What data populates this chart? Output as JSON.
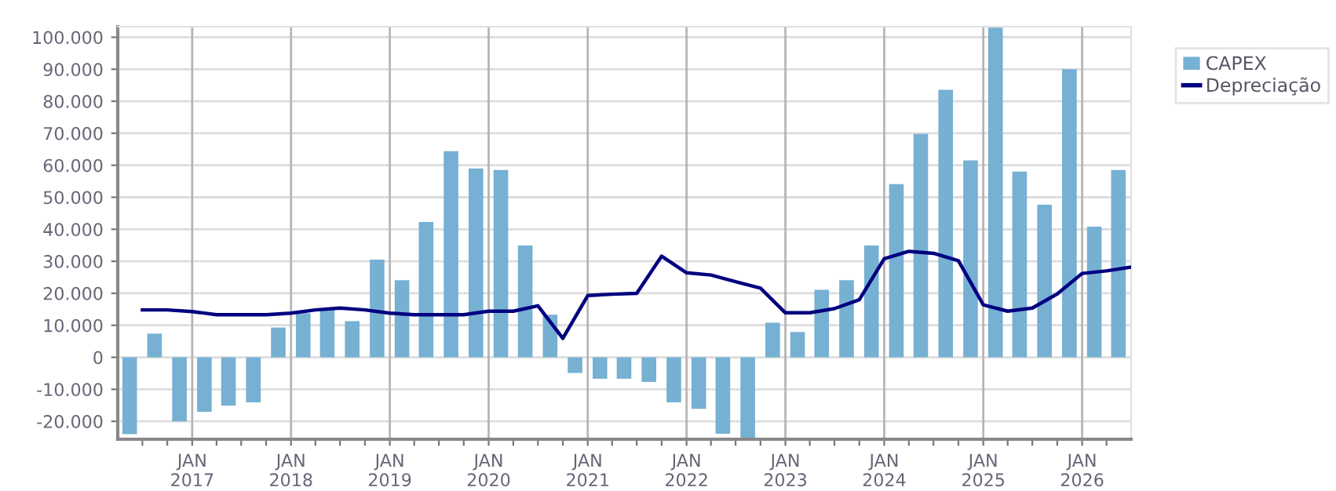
{
  "chart_data": {
    "type": "bar",
    "legend": "top right",
    "grid": true,
    "xlim": [
      "2016-04-01",
      "2026-07-01"
    ],
    "xticks": [
      {
        "value": "2016-07-01",
        "label": null
      },
      {
        "value": "2016-10-01",
        "label": null
      },
      {
        "value": "2017-01-01",
        "label": "JAN\n2017"
      },
      {
        "value": "2017-04-01",
        "label": null
      },
      {
        "value": "2017-07-01",
        "label": null
      },
      {
        "value": "2017-10-01",
        "label": null
      },
      {
        "value": "2018-01-01",
        "label": "JAN\n2018"
      },
      {
        "value": "2018-04-01",
        "label": null
      },
      {
        "value": "2018-07-01",
        "label": null
      },
      {
        "value": "2018-10-01",
        "label": null
      },
      {
        "value": "2019-01-01",
        "label": "JAN\n2019"
      },
      {
        "value": "2019-04-01",
        "label": null
      },
      {
        "value": "2019-07-01",
        "label": null
      },
      {
        "value": "2019-10-01",
        "label": null
      },
      {
        "value": "2020-01-01",
        "label": "JAN\n2020"
      },
      {
        "value": "2020-04-01",
        "label": null
      },
      {
        "value": "2020-07-01",
        "label": null
      },
      {
        "value": "2020-10-01",
        "label": null
      },
      {
        "value": "2021-01-01",
        "label": "JAN\n2021"
      },
      {
        "value": "2021-04-01",
        "label": null
      },
      {
        "value": "2021-07-01",
        "label": null
      },
      {
        "value": "2021-10-01",
        "label": null
      },
      {
        "value": "2022-01-01",
        "label": "JAN\n2022"
      },
      {
        "value": "2022-04-01",
        "label": null
      },
      {
        "value": "2022-07-01",
        "label": null
      },
      {
        "value": "2022-10-01",
        "label": null
      },
      {
        "value": "2023-01-01",
        "label": "JAN\n2023"
      },
      {
        "value": "2023-04-01",
        "label": null
      },
      {
        "value": "2023-07-01",
        "label": null
      },
      {
        "value": "2023-10-01",
        "label": null
      },
      {
        "value": "2024-01-01",
        "label": "JAN\n2024"
      },
      {
        "value": "2024-04-01",
        "label": null
      },
      {
        "value": "2024-07-01",
        "label": null
      },
      {
        "value": "2024-10-01",
        "label": null
      },
      {
        "value": "2025-01-01",
        "label": "JAN\n2025"
      },
      {
        "value": "2025-04-01",
        "label": null
      },
      {
        "value": "2025-07-01",
        "label": null
      },
      {
        "value": "2025-10-01",
        "label": null
      },
      {
        "value": "2026-01-01",
        "label": "JAN\n2026"
      },
      {
        "value": "2026-04-01",
        "label": null
      }
    ],
    "ylim": [
      -25600,
      103300
    ],
    "yticks": [
      {
        "value": -20000,
        "label": "-20.000"
      },
      {
        "value": -10000,
        "label": "-10.000"
      },
      {
        "value": 0,
        "label": "0"
      },
      {
        "value": 10000,
        "label": "10.000"
      },
      {
        "value": 20000,
        "label": "20.000"
      },
      {
        "value": 30000,
        "label": "30.000"
      },
      {
        "value": 40000,
        "label": "40.000"
      },
      {
        "value": 50000,
        "label": "50.000"
      },
      {
        "value": 60000,
        "label": "60.000"
      },
      {
        "value": 70000,
        "label": "70.000"
      },
      {
        "value": 80000,
        "label": "80.000"
      },
      {
        "value": 90000,
        "label": "90.000"
      },
      {
        "value": 100000,
        "label": "100.000"
      }
    ],
    "series": [
      {
        "name": "CAPEX",
        "color": "#76b0d3",
        "x": [
          "2016-05-15",
          "2016-08-15",
          "2016-11-15",
          "2017-02-15",
          "2017-05-15",
          "2017-08-15",
          "2017-11-15",
          "2018-02-15",
          "2018-05-15",
          "2018-08-15",
          "2018-11-15",
          "2019-02-15",
          "2019-05-15",
          "2019-08-15",
          "2019-11-15",
          "2020-02-15",
          "2020-05-15",
          "2020-08-15",
          "2020-11-15",
          "2021-02-15",
          "2021-05-15",
          "2021-08-15",
          "2021-11-15",
          "2022-02-15",
          "2022-05-15",
          "2022-08-15",
          "2022-11-15",
          "2023-02-15",
          "2023-05-15",
          "2023-08-15",
          "2023-11-15",
          "2024-02-15",
          "2024-05-15",
          "2024-08-15",
          "2024-11-15",
          "2025-02-15",
          "2025-05-15",
          "2025-08-15",
          "2025-11-15",
          "2026-02-15",
          "2026-05-15"
        ],
        "values": [
          -24000,
          7400,
          -20000,
          -17000,
          -15100,
          -14100,
          9300,
          13800,
          14900,
          11300,
          30500,
          24100,
          42300,
          64400,
          59000,
          58500,
          34900,
          13300,
          -4900,
          -6700,
          -6700,
          -7700,
          -14100,
          -16100,
          -23900,
          -25600,
          10800,
          7900,
          21100,
          24100,
          34900,
          54100,
          69800,
          83600,
          61500,
          103000,
          58000,
          47700,
          90000,
          40800,
          58500
        ]
      },
      {
        "name": "Depreciação",
        "type": "line",
        "color": "#000080",
        "marker": "none",
        "line_style": "solid",
        "x": [
          "2016-07-01",
          "2016-10-01",
          "2017-01-01",
          "2017-04-01",
          "2017-07-01",
          "2017-10-01",
          "2018-01-01",
          "2018-04-01",
          "2018-07-01",
          "2018-10-01",
          "2019-01-01",
          "2019-04-01",
          "2019-07-01",
          "2019-10-01",
          "2020-01-01",
          "2020-04-01",
          "2020-07-01",
          "2020-10-01",
          "2021-01-01",
          "2021-04-01",
          "2021-07-01",
          "2021-10-01",
          "2022-01-01",
          "2022-04-01",
          "2022-07-01",
          "2022-10-01",
          "2023-01-01",
          "2023-04-01",
          "2023-07-01",
          "2023-10-01",
          "2024-01-01",
          "2024-04-01",
          "2024-07-01",
          "2024-10-01",
          "2025-01-01",
          "2025-04-01",
          "2025-07-01",
          "2025-10-01",
          "2026-01-01",
          "2026-04-01",
          "2026-07-01"
        ],
        "values": [
          14800,
          14800,
          14300,
          13300,
          13300,
          13300,
          13800,
          14800,
          15400,
          14800,
          13800,
          13300,
          13300,
          13300,
          14400,
          14400,
          16100,
          5900,
          19300,
          19700,
          20000,
          31600,
          26400,
          25700,
          23600,
          21600,
          13900,
          13900,
          15200,
          18000,
          30800,
          33100,
          32500,
          30200,
          16400,
          14400,
          15400,
          19800,
          26200,
          27000,
          28200
        ]
      }
    ]
  }
}
